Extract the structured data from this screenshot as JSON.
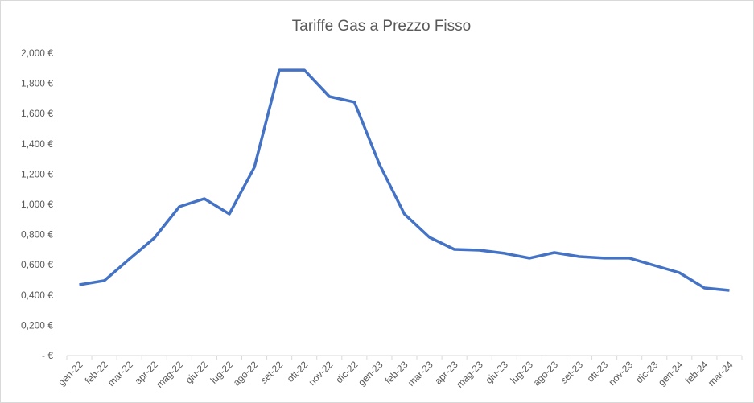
{
  "chart_data": {
    "type": "line",
    "title": "Tariffe Gas a Prezzo Fisso",
    "xlabel": "",
    "ylabel": "",
    "ylim": [
      0,
      2.0
    ],
    "y_ticks": [
      0,
      0.2,
      0.4,
      0.6,
      0.8,
      1.0,
      1.2,
      1.4,
      1.6,
      1.8,
      2.0
    ],
    "y_tick_labels": [
      "-      €",
      "0,200 €",
      "0,400 €",
      "0,600 €",
      "0,800 €",
      "1,000 €",
      "1,200 €",
      "1,400 €",
      "1,600 €",
      "1,800 €",
      "2,000 €"
    ],
    "categories": [
      "gen-22",
      "feb-22",
      "mar-22",
      "apr-22",
      "mag-22",
      "giu-22",
      "lug-22",
      "ago-22",
      "set-22",
      "ott-22",
      "nov-22",
      "dic-22",
      "gen-23",
      "feb-23",
      "mar-23",
      "apr-23",
      "mag-23",
      "giu-23",
      "lug-23",
      "ago-23",
      "set-23",
      "ott-23",
      "nov-23",
      "dic-23",
      "gen-24",
      "feb-24",
      "mar-24"
    ],
    "series": [
      {
        "name": "Tariffe Gas a Prezzo Fisso",
        "color": "#4472c4",
        "values": [
          0.468,
          0.495,
          0.638,
          0.777,
          0.984,
          1.037,
          0.936,
          1.245,
          1.888,
          1.888,
          1.713,
          1.676,
          1.266,
          0.936,
          0.782,
          0.702,
          0.697,
          0.676,
          0.644,
          0.681,
          0.654,
          0.644,
          0.644,
          0.596,
          0.548,
          0.447,
          0.431
        ]
      }
    ],
    "grid": false,
    "legend": "none"
  }
}
